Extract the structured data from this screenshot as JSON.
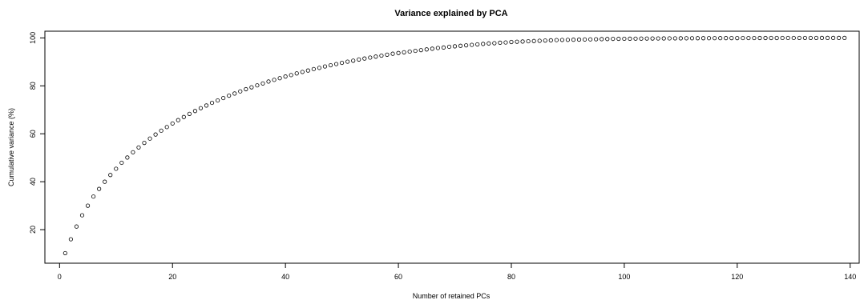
{
  "chart_data": {
    "type": "scatter",
    "title": "Variance explained by PCA",
    "xlabel": "Number of retained PCs",
    "ylabel": "Cumulative variance (%)",
    "xlim": [
      -2.6,
      141.6
    ],
    "ylim": [
      6.0,
      102.8
    ],
    "xticks": [
      0,
      20,
      40,
      60,
      80,
      100,
      120,
      140
    ],
    "yticks": [
      20,
      40,
      60,
      80,
      100
    ],
    "marker": "open-circle",
    "grid": false,
    "legend": "none",
    "x": [
      1,
      2,
      3,
      4,
      5,
      6,
      7,
      8,
      9,
      10,
      11,
      12,
      13,
      14,
      15,
      16,
      17,
      18,
      19,
      20,
      21,
      22,
      23,
      24,
      25,
      26,
      27,
      28,
      29,
      30,
      31,
      32,
      33,
      34,
      35,
      36,
      37,
      38,
      39,
      40,
      41,
      42,
      43,
      44,
      45,
      46,
      47,
      48,
      49,
      50,
      51,
      52,
      53,
      54,
      55,
      56,
      57,
      58,
      59,
      60,
      61,
      62,
      63,
      64,
      65,
      66,
      67,
      68,
      69,
      70,
      71,
      72,
      73,
      74,
      75,
      76,
      77,
      78,
      79,
      80,
      81,
      82,
      83,
      84,
      85,
      86,
      87,
      88,
      89,
      90,
      91,
      92,
      93,
      94,
      95,
      96,
      97,
      98,
      99,
      100,
      101,
      102,
      103,
      104,
      105,
      106,
      107,
      108,
      109,
      110,
      111,
      112,
      113,
      114,
      115,
      116,
      117,
      118,
      119,
      120,
      121,
      122,
      123,
      124,
      125,
      126,
      127,
      128,
      129,
      130,
      131,
      132,
      133,
      134,
      135,
      136,
      137,
      138,
      139
    ],
    "y": [
      10.2,
      16.0,
      21.3,
      26.0,
      30.0,
      33.8,
      37.0,
      40.0,
      42.8,
      45.4,
      47.9,
      50.1,
      52.3,
      54.3,
      56.2,
      58.0,
      59.7,
      61.3,
      62.8,
      64.3,
      65.7,
      67.0,
      68.3,
      69.5,
      70.7,
      71.8,
      72.9,
      73.9,
      74.9,
      75.9,
      76.8,
      77.7,
      78.6,
      79.4,
      80.2,
      81.0,
      81.8,
      82.5,
      83.2,
      83.9,
      84.5,
      85.2,
      85.8,
      86.4,
      87.0,
      87.5,
      88.1,
      88.6,
      89.1,
      89.6,
      90.1,
      90.5,
      91.0,
      91.4,
      91.8,
      92.2,
      92.6,
      93.0,
      93.4,
      93.7,
      94.0,
      94.3,
      94.6,
      94.9,
      95.2,
      95.5,
      95.8,
      96.0,
      96.3,
      96.5,
      96.7,
      96.9,
      97.1,
      97.3,
      97.5,
      97.7,
      97.8,
      98.0,
      98.1,
      98.3,
      98.4,
      98.5,
      98.6,
      98.7,
      98.8,
      98.9,
      99.0,
      99.1,
      99.15,
      99.2,
      99.25,
      99.3,
      99.35,
      99.4,
      99.45,
      99.5,
      99.55,
      99.6,
      99.62,
      99.65,
      99.67,
      99.7,
      99.72,
      99.74,
      99.76,
      99.78,
      99.8,
      99.81,
      99.82,
      99.84,
      99.85,
      99.86,
      99.87,
      99.88,
      99.89,
      99.9,
      99.91,
      99.92,
      99.93,
      99.93,
      99.94,
      99.95,
      99.95,
      99.96,
      99.96,
      99.97,
      99.97,
      99.98,
      99.98,
      99.98,
      99.99,
      99.99,
      99.99,
      99.99,
      100.0,
      100.0,
      100.0,
      100.0,
      100.0
    ]
  }
}
